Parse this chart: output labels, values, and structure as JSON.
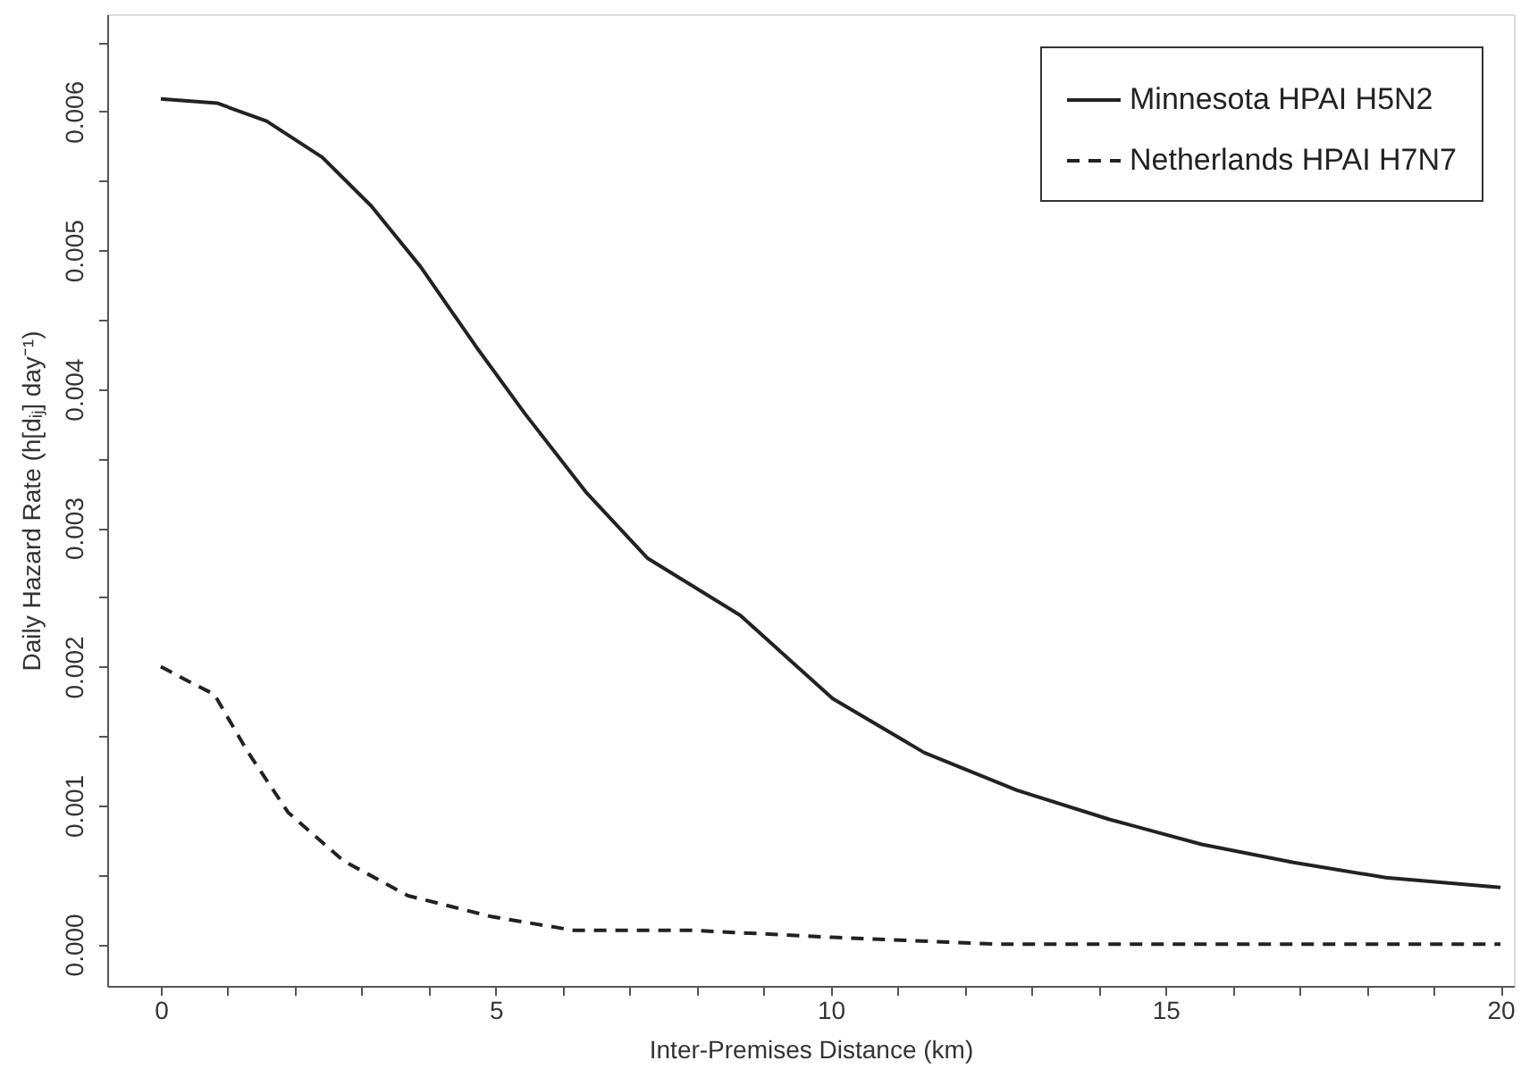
{
  "chart_data": {
    "type": "line",
    "xlabel": "Inter-Premises Distance (km)",
    "ylabel": "Daily Hazard Rate (h[dᵢⱼ] day⁻¹)",
    "xlim": [
      -0.8,
      20.2
    ],
    "ylim": [
      -0.0003,
      0.0067
    ],
    "xticks": [
      0,
      {
        "value": 1,
        "label": null
      },
      {
        "value": 2,
        "label": null
      },
      {
        "value": 3,
        "label": null
      },
      {
        "value": 4,
        "label": null
      },
      5,
      {
        "value": 6,
        "label": null
      },
      {
        "value": 7,
        "label": null
      },
      {
        "value": 8,
        "label": null
      },
      {
        "value": 9,
        "label": null
      },
      10,
      {
        "value": 11,
        "label": null
      },
      {
        "value": 12,
        "label": null
      },
      {
        "value": 13,
        "label": null
      },
      {
        "value": 14,
        "label": null
      },
      15,
      {
        "value": 16,
        "label": null
      },
      {
        "value": 17,
        "label": null
      },
      {
        "value": 18,
        "label": null
      },
      {
        "value": 19,
        "label": null
      },
      20
    ],
    "yticks": [
      {
        "value": 0,
        "label": "0.000"
      },
      {
        "value": 0.0005,
        "label": null
      },
      {
        "value": 0.001,
        "label": "0.001"
      },
      {
        "value": 0.0015,
        "label": null
      },
      {
        "value": 0.002,
        "label": "0.002"
      },
      {
        "value": 0.0025,
        "label": null
      },
      {
        "value": 0.003,
        "label": "0.003"
      },
      {
        "value": 0.0035,
        "label": null
      },
      {
        "value": 0.004,
        "label": "0.004"
      },
      {
        "value": 0.0045,
        "label": null
      },
      {
        "value": 0.005,
        "label": "0.005"
      },
      {
        "value": 0.0055,
        "label": null
      },
      {
        "value": 0.006,
        "label": "0.006"
      },
      {
        "value": 0.0065,
        "label": null
      }
    ],
    "grid": false,
    "legend": "top right",
    "marker": "none",
    "series": [
      {
        "name": "Minnesota HPAI H5N2",
        "color": "#222222",
        "line_style": "solid",
        "x": [
          0,
          0.84,
          1.58,
          2.41,
          3.14,
          3.88,
          4.7,
          5.44,
          6.36,
          7.27,
          8.65,
          10.03,
          11.4,
          12.78,
          14.16,
          15.54,
          16.91,
          18.29,
          20
        ],
        "values": [
          0.00609,
          0.00606,
          0.00593,
          0.00567,
          0.00532,
          0.00488,
          0.00431,
          0.00382,
          0.00325,
          0.00278,
          0.00237,
          0.00177,
          0.00138,
          0.00111,
          0.0009,
          0.00072,
          0.00059,
          0.00048,
          0.00041
        ]
      },
      {
        "name": "Netherlands HPAI H7N7",
        "color": "#222222",
        "line_style": "dashed",
        "x": [
          0,
          0.39,
          0.8,
          1.28,
          1.9,
          2.73,
          3.69,
          4.93,
          6.17,
          7.96,
          10.03,
          12.5,
          15,
          17.5,
          20
        ],
        "values": [
          0.002,
          0.0019,
          0.0018,
          0.0014,
          0.00095,
          0.0006,
          0.00035,
          0.0002,
          0.0001,
          0.0001,
          5e-05,
          0,
          0,
          0,
          0
        ]
      }
    ]
  }
}
